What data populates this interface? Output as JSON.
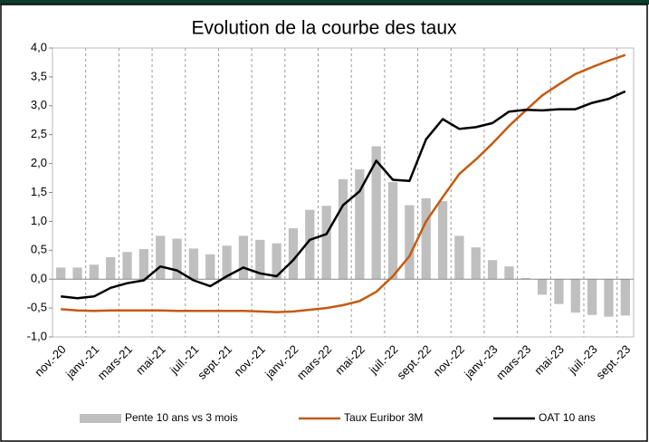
{
  "chart_data": {
    "type": "bar_line",
    "title": "Evolution de la courbe des taux",
    "categories": [
      "nov.-20",
      null,
      "janv.-21",
      null,
      "mars-21",
      null,
      "mai-21",
      null,
      "juil.-21",
      null,
      "sept.-21",
      null,
      "nov.-21",
      null,
      "janv.-22",
      null,
      "mars-22",
      null,
      "mai-22",
      null,
      "juil.-22",
      null,
      "sept.-22",
      null,
      "nov.-22",
      null,
      "janv.-23",
      null,
      "mars-23",
      null,
      "mai-23",
      null,
      "juil.-23",
      null,
      "sept.-23"
    ],
    "series": [
      {
        "name": "Pente 10 ans vs 3 mois",
        "kind": "bar",
        "color": "#bfbfbf",
        "values": [
          0.2,
          0.2,
          0.25,
          0.38,
          0.47,
          0.52,
          0.75,
          0.7,
          0.53,
          0.43,
          0.58,
          0.75,
          0.68,
          0.62,
          0.88,
          1.2,
          1.27,
          1.73,
          1.9,
          2.3,
          1.68,
          1.28,
          1.4,
          1.35,
          0.75,
          0.55,
          0.33,
          0.22,
          0.02,
          -0.27,
          -0.43,
          -0.58,
          -0.62,
          -0.65,
          -0.63
        ]
      },
      {
        "name": "Taux Euribor 3M",
        "kind": "line",
        "color": "#c55a11",
        "values": [
          -0.52,
          -0.54,
          -0.55,
          -0.54,
          -0.54,
          -0.54,
          -0.54,
          -0.55,
          -0.55,
          -0.55,
          -0.55,
          -0.55,
          -0.56,
          -0.57,
          -0.56,
          -0.53,
          -0.5,
          -0.45,
          -0.38,
          -0.22,
          0.05,
          0.4,
          1.0,
          1.42,
          1.82,
          2.07,
          2.35,
          2.65,
          2.92,
          3.18,
          3.37,
          3.55,
          3.67,
          3.78,
          3.88
        ]
      },
      {
        "name": "OAT 10 ans",
        "kind": "line",
        "color": "#000000",
        "values": [
          -0.3,
          -0.33,
          -0.3,
          -0.15,
          -0.07,
          -0.02,
          0.22,
          0.15,
          -0.02,
          -0.12,
          0.05,
          0.2,
          0.1,
          0.05,
          0.33,
          0.68,
          0.78,
          1.28,
          1.52,
          2.05,
          1.72,
          1.7,
          2.42,
          2.77,
          2.6,
          2.63,
          2.7,
          2.9,
          2.93,
          2.92,
          2.94,
          2.94,
          3.05,
          3.12,
          3.25
        ]
      }
    ],
    "ylim": [
      -1,
      4
    ],
    "yticks": [
      {
        "value": -1,
        "label": "-1,0"
      },
      {
        "value": -0.5,
        "label": "-0,5"
      },
      {
        "value": 0,
        "label": "0,0"
      },
      {
        "value": 0.5,
        "label": "0,5"
      },
      {
        "value": 1,
        "label": "1,0"
      },
      {
        "value": 1.5,
        "label": "1,5"
      },
      {
        "value": 2,
        "label": "2,0"
      },
      {
        "value": 2.5,
        "label": "2,5"
      },
      {
        "value": 3,
        "label": "3,0"
      },
      {
        "value": 3.5,
        "label": "3,5"
      },
      {
        "value": 4,
        "label": "4,0"
      }
    ],
    "grid": true
  }
}
